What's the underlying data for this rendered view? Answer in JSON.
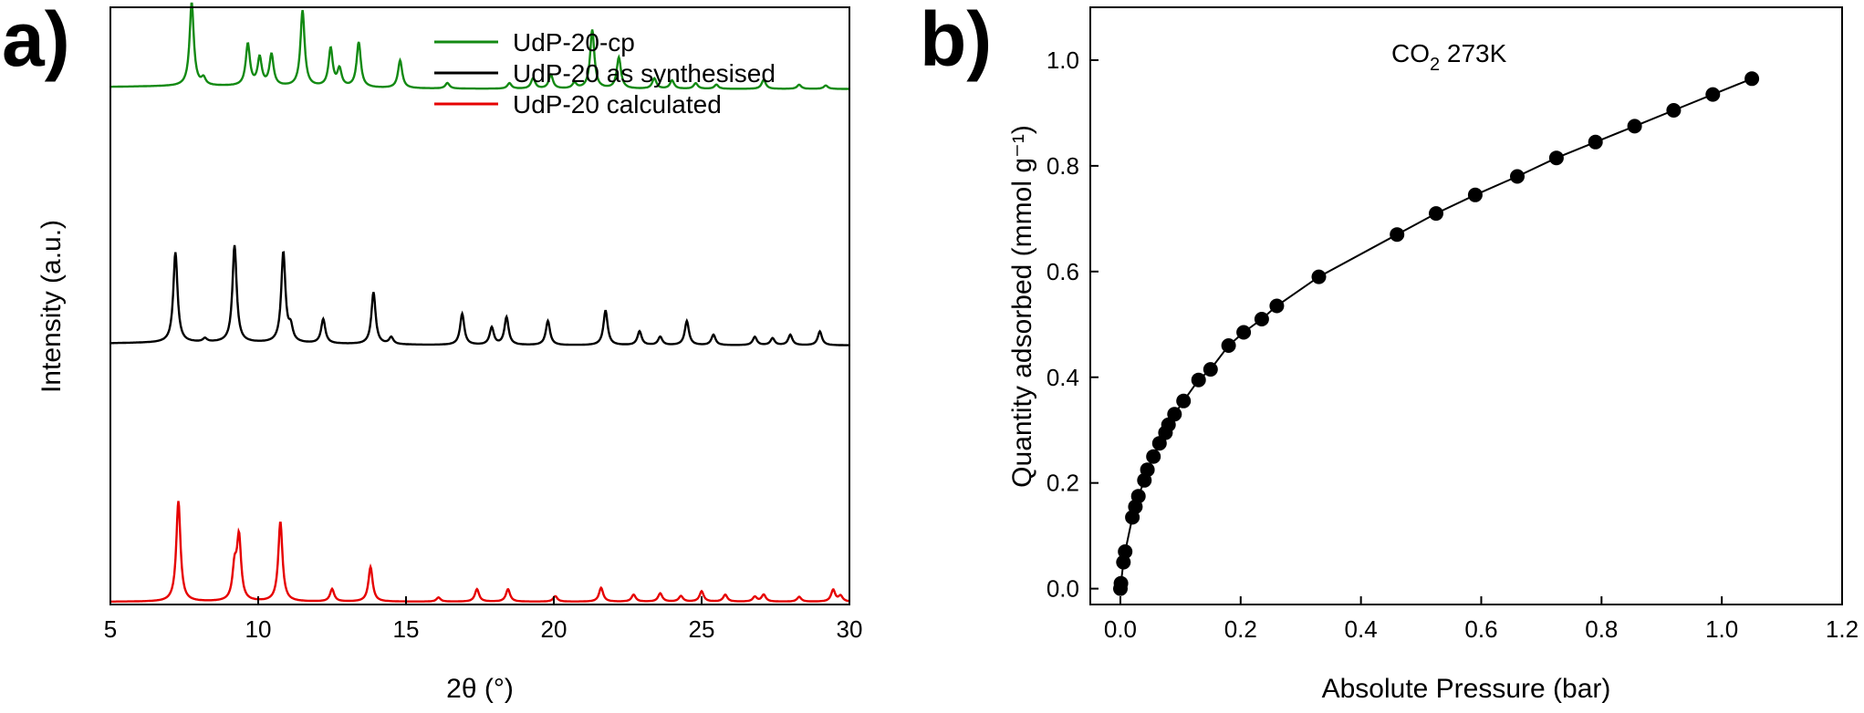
{
  "panels": {
    "a": {
      "letter": "a)",
      "xlabel": "2θ (°)",
      "ylabel": "Intensity (a.u.)",
      "legend": [
        {
          "label": "UdP-20-cp",
          "color": "#138a13"
        },
        {
          "label": "UdP-20 as synthesised",
          "color": "#000000"
        },
        {
          "label": "UdP-20 calculated",
          "color": "#e60000"
        }
      ]
    },
    "b": {
      "letter": "b)",
      "annotation": {
        "main": "CO",
        "sub": "2",
        "rest": " 273K"
      },
      "xlabel": "Absolute Pressure (bar)",
      "ylabel": "Quantity adsorbed (mmol g⁻¹)"
    }
  },
  "chart_data": [
    {
      "type": "line",
      "xlabel": "2θ (°)",
      "ylabel": "Intensity (a.u.)",
      "xlim": [
        5,
        30
      ],
      "xticks": [
        5,
        10,
        15,
        20,
        25,
        30
      ],
      "yticks_shown": false,
      "legend_position": "top-center",
      "series": [
        {
          "name": "UdP-20-cp",
          "color": "#138a13",
          "baseline": 0.74,
          "peaks": [
            [
              7.75,
              0.12
            ],
            [
              8.15,
              0.01
            ],
            [
              9.65,
              0.06
            ],
            [
              10.05,
              0.04
            ],
            [
              10.45,
              0.045
            ],
            [
              11.5,
              0.11
            ],
            [
              12.45,
              0.055
            ],
            [
              12.75,
              0.025
            ],
            [
              13.4,
              0.065
            ],
            [
              14.8,
              0.04
            ],
            [
              16.4,
              0.008
            ],
            [
              18.5,
              0.008
            ],
            [
              19.3,
              0.015
            ],
            [
              19.9,
              0.02
            ],
            [
              20.7,
              0.008
            ],
            [
              21.3,
              0.085
            ],
            [
              22.2,
              0.045
            ],
            [
              23.4,
              0.015
            ],
            [
              24.0,
              0.012
            ],
            [
              24.8,
              0.008
            ],
            [
              25.5,
              0.006
            ],
            [
              27.1,
              0.013
            ],
            [
              28.3,
              0.006
            ],
            [
              29.2,
              0.005
            ]
          ]
        },
        {
          "name": "UdP-20 as synthesised",
          "color": "#000000",
          "baseline": 0.37,
          "peaks": [
            [
              7.2,
              0.13
            ],
            [
              8.2,
              0.005
            ],
            [
              9.2,
              0.14
            ],
            [
              10.85,
              0.13
            ],
            [
              11.1,
              0.02
            ],
            [
              12.2,
              0.035
            ],
            [
              13.9,
              0.075
            ],
            [
              14.5,
              0.01
            ],
            [
              16.9,
              0.045
            ],
            [
              17.9,
              0.025
            ],
            [
              18.4,
              0.04
            ],
            [
              19.8,
              0.035
            ],
            [
              21.75,
              0.05
            ],
            [
              22.9,
              0.02
            ],
            [
              23.6,
              0.012
            ],
            [
              24.5,
              0.035
            ],
            [
              25.4,
              0.015
            ],
            [
              26.8,
              0.012
            ],
            [
              27.4,
              0.01
            ],
            [
              28.0,
              0.015
            ],
            [
              29.0,
              0.02
            ]
          ]
        },
        {
          "name": "UdP-20 calculated",
          "color": "#e60000",
          "baseline": 0.0,
          "peaks": [
            [
              7.3,
              0.145
            ],
            [
              9.2,
              0.045
            ],
            [
              9.35,
              0.09
            ],
            [
              10.75,
              0.115
            ],
            [
              12.5,
              0.018
            ],
            [
              13.8,
              0.05
            ],
            [
              16.1,
              0.006
            ],
            [
              17.4,
              0.018
            ],
            [
              18.45,
              0.018
            ],
            [
              20.05,
              0.008
            ],
            [
              21.6,
              0.02
            ],
            [
              22.7,
              0.01
            ],
            [
              23.6,
              0.012
            ],
            [
              24.3,
              0.008
            ],
            [
              25.0,
              0.015
            ],
            [
              25.8,
              0.01
            ],
            [
              26.8,
              0.007
            ],
            [
              27.1,
              0.01
            ],
            [
              28.3,
              0.007
            ],
            [
              29.45,
              0.017
            ],
            [
              29.7,
              0.008
            ]
          ]
        }
      ]
    },
    {
      "type": "scatter",
      "annotation": "CO2 273K",
      "xlabel": "Absolute Pressure (bar)",
      "ylabel": "Quantity adsorbed (mmol g⁻¹)",
      "xlim": [
        -0.05,
        1.2
      ],
      "ylim": [
        -0.03,
        1.1
      ],
      "xticks": [
        0.0,
        0.2,
        0.4,
        0.6,
        0.8,
        1.0,
        1.2
      ],
      "yticks": [
        0.0,
        0.2,
        0.4,
        0.6,
        0.8,
        1.0
      ],
      "connected": true,
      "series": [
        {
          "x": [
            0.0,
            0.001,
            0.005,
            0.008,
            0.02,
            0.025,
            0.03,
            0.04,
            0.045,
            0.055,
            0.065,
            0.075,
            0.08,
            0.09,
            0.105,
            0.13,
            0.15,
            0.18,
            0.205,
            0.235,
            0.26,
            0.33,
            0.46,
            0.525,
            0.59,
            0.66,
            0.725,
            0.79,
            0.855,
            0.92,
            0.985,
            1.05
          ],
          "y": [
            0.0,
            0.01,
            0.05,
            0.07,
            0.135,
            0.155,
            0.175,
            0.205,
            0.225,
            0.25,
            0.275,
            0.295,
            0.31,
            0.33,
            0.355,
            0.395,
            0.415,
            0.46,
            0.485,
            0.51,
            0.535,
            0.59,
            0.67,
            0.71,
            0.745,
            0.78,
            0.815,
            0.845,
            0.875,
            0.905,
            0.935,
            0.965
          ]
        }
      ]
    }
  ]
}
